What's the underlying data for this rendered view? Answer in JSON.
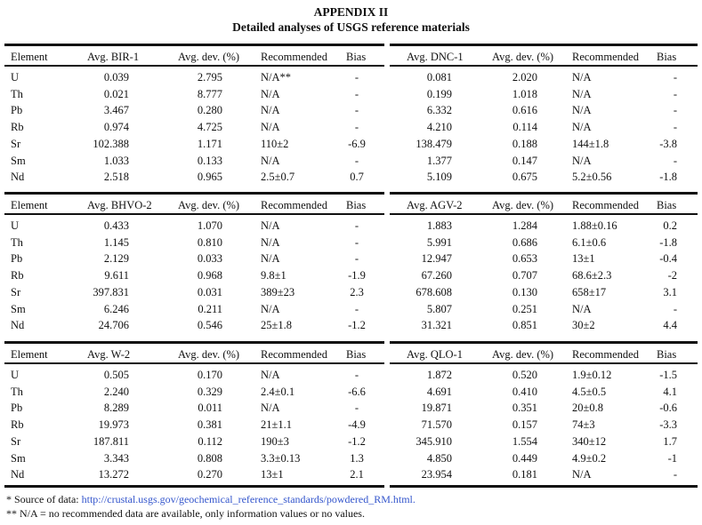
{
  "title": "APPENDIX II",
  "subtitle": "Detailed analyses of USGS reference materials",
  "colors": {
    "text": "#111111",
    "link": "#3355cc"
  },
  "blocks": [
    {
      "left": {
        "avg_header": "Avg. BIR-1",
        "dev_header": "Avg. dev. (%)",
        "rec_header": "Recommended",
        "bias_header": "Bias",
        "rows": [
          {
            "avg": "0.039",
            "dev": "2.795",
            "rec": "N/A**",
            "bias": "-"
          },
          {
            "avg": "0.021",
            "dev": "8.777",
            "rec": "N/A",
            "bias": "-"
          },
          {
            "avg": "3.467",
            "dev": "0.280",
            "rec": "N/A",
            "bias": "-"
          },
          {
            "avg": "0.974",
            "dev": "4.725",
            "rec": "N/A",
            "bias": "-"
          },
          {
            "avg": "102.388",
            "dev": "1.171",
            "rec": "110±2",
            "bias": "-6.9"
          },
          {
            "avg": "1.033",
            "dev": "0.133",
            "rec": "N/A",
            "bias": "-"
          },
          {
            "avg": "2.518",
            "dev": "0.965",
            "rec": "2.5±0.7",
            "bias": "0.7"
          }
        ]
      },
      "right": {
        "avg_header": "Avg. DNC-1",
        "dev_header": "Avg. dev. (%)",
        "rec_header": "Recommended",
        "bias_header": "Bias",
        "rows": [
          {
            "avg": "0.081",
            "dev": "2.020",
            "rec": "N/A",
            "bias": "-"
          },
          {
            "avg": "0.199",
            "dev": "1.018",
            "rec": "N/A",
            "bias": "-"
          },
          {
            "avg": "6.332",
            "dev": "0.616",
            "rec": "N/A",
            "bias": "-"
          },
          {
            "avg": "4.210",
            "dev": "0.114",
            "rec": "N/A",
            "bias": "-"
          },
          {
            "avg": "138.479",
            "dev": "0.188",
            "rec": "144±1.8",
            "bias": "-3.8"
          },
          {
            "avg": "1.377",
            "dev": "0.147",
            "rec": "N/A",
            "bias": "-"
          },
          {
            "avg": "5.109",
            "dev": "0.675",
            "rec": "5.2±0.56",
            "bias": "-1.8"
          }
        ]
      }
    },
    {
      "left": {
        "avg_header": "Avg. BHVO-2",
        "dev_header": "Avg. dev. (%)",
        "rec_header": "Recommended",
        "bias_header": "Bias",
        "rows": [
          {
            "avg": "0.433",
            "dev": "1.070",
            "rec": "N/A",
            "bias": "-"
          },
          {
            "avg": "1.145",
            "dev": "0.810",
            "rec": "N/A",
            "bias": "-"
          },
          {
            "avg": "2.129",
            "dev": "0.033",
            "rec": "N/A",
            "bias": "-"
          },
          {
            "avg": "9.611",
            "dev": "0.968",
            "rec": "9.8±1",
            "bias": "-1.9"
          },
          {
            "avg": "397.831",
            "dev": "0.031",
            "rec": "389±23",
            "bias": "2.3"
          },
          {
            "avg": "6.246",
            "dev": "0.211",
            "rec": "N/A",
            "bias": "-"
          },
          {
            "avg": "24.706",
            "dev": "0.546",
            "rec": "25±1.8",
            "bias": "-1.2"
          }
        ]
      },
      "right": {
        "avg_header": "Avg. AGV-2",
        "dev_header": "Avg. dev. (%)",
        "rec_header": "Recommended",
        "bias_header": "Bias",
        "rows": [
          {
            "avg": "1.883",
            "dev": "1.284",
            "rec": "1.88±0.16",
            "bias": "0.2"
          },
          {
            "avg": "5.991",
            "dev": "0.686",
            "rec": "6.1±0.6",
            "bias": "-1.8"
          },
          {
            "avg": "12.947",
            "dev": "0.653",
            "rec": "13±1",
            "bias": "-0.4"
          },
          {
            "avg": "67.260",
            "dev": "0.707",
            "rec": "68.6±2.3",
            "bias": "-2"
          },
          {
            "avg": "678.608",
            "dev": "0.130",
            "rec": "658±17",
            "bias": "3.1"
          },
          {
            "avg": "5.807",
            "dev": "0.251",
            "rec": "N/A",
            "bias": "-"
          },
          {
            "avg": "31.321",
            "dev": "0.851",
            "rec": "30±2",
            "bias": "4.4"
          }
        ]
      }
    },
    {
      "left": {
        "avg_header": "Avg. W-2",
        "dev_header": "Avg. dev. (%)",
        "rec_header": "Recommended",
        "bias_header": "Bias",
        "rows": [
          {
            "avg": "0.505",
            "dev": "0.170",
            "rec": "N/A",
            "bias": "-"
          },
          {
            "avg": "2.240",
            "dev": "0.329",
            "rec": "2.4±0.1",
            "bias": "-6.6"
          },
          {
            "avg": "8.289",
            "dev": "0.011",
            "rec": "N/A",
            "bias": "-"
          },
          {
            "avg": "19.973",
            "dev": "0.381",
            "rec": "21±1.1",
            "bias": "-4.9"
          },
          {
            "avg": "187.811",
            "dev": "0.112",
            "rec": "190±3",
            "bias": "-1.2"
          },
          {
            "avg": "3.343",
            "dev": "0.808",
            "rec": "3.3±0.13",
            "bias": "1.3"
          },
          {
            "avg": "13.272",
            "dev": "0.270",
            "rec": "13±1",
            "bias": "2.1"
          }
        ]
      },
      "right": {
        "avg_header": "Avg. QLO-1",
        "dev_header": "Avg. dev. (%)",
        "rec_header": "Recommended",
        "bias_header": "Bias",
        "rows": [
          {
            "avg": "1.872",
            "dev": "0.520",
            "rec": "1.9±0.12",
            "bias": "-1.5"
          },
          {
            "avg": "4.691",
            "dev": "0.410",
            "rec": "4.5±0.5",
            "bias": "4.1"
          },
          {
            "avg": "19.871",
            "dev": "0.351",
            "rec": "20±0.8",
            "bias": "-0.6"
          },
          {
            "avg": "71.570",
            "dev": "0.157",
            "rec": "74±3",
            "bias": "-3.3"
          },
          {
            "avg": "345.910",
            "dev": "1.554",
            "rec": "340±12",
            "bias": "1.7"
          },
          {
            "avg": "4.850",
            "dev": "0.449",
            "rec": "4.9±0.2",
            "bias": "-1"
          },
          {
            "avg": "23.954",
            "dev": "0.181",
            "rec": "N/A",
            "bias": "-"
          }
        ]
      }
    }
  ],
  "element_header": "Element",
  "elements": [
    "U",
    "Th",
    "Pb",
    "Rb",
    "Sr",
    "Sm",
    "Nd"
  ],
  "footnotes": {
    "source_prefix": "* Source of data: ",
    "source_link": "http://crustal.usgs.gov/geochemical_reference_standards/powdered_RM.html.",
    "na_note": "** N/A = no recommended data are available, only information values or no values."
  }
}
